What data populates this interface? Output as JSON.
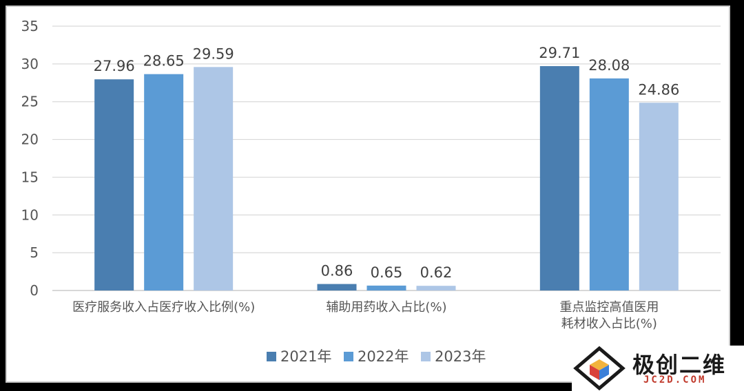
{
  "chart_data": {
    "type": "bar",
    "categories": [
      [
        "医疗服务收入占医疗收入比例(%)"
      ],
      [
        "辅助用药收入占比(%)"
      ],
      [
        "重点监控高值医用",
        "耗材收入占比(%)"
      ]
    ],
    "series": [
      {
        "name": "2021年",
        "color": "#4a7eb0",
        "values": [
          27.96,
          0.86,
          29.71
        ]
      },
      {
        "name": "2022年",
        "color": "#5b9bd5",
        "values": [
          28.65,
          0.65,
          28.08
        ]
      },
      {
        "name": "2023年",
        "color": "#adc6e6",
        "values": [
          29.59,
          0.62,
          24.86
        ]
      }
    ],
    "yticks": [
      0,
      5,
      10,
      15,
      20,
      25,
      30,
      35
    ],
    "ylim": [
      0,
      35
    ],
    "grid": true,
    "legend": "bottom"
  },
  "watermark": {
    "text": "极创二维",
    "sub": "JC2D.COM"
  }
}
